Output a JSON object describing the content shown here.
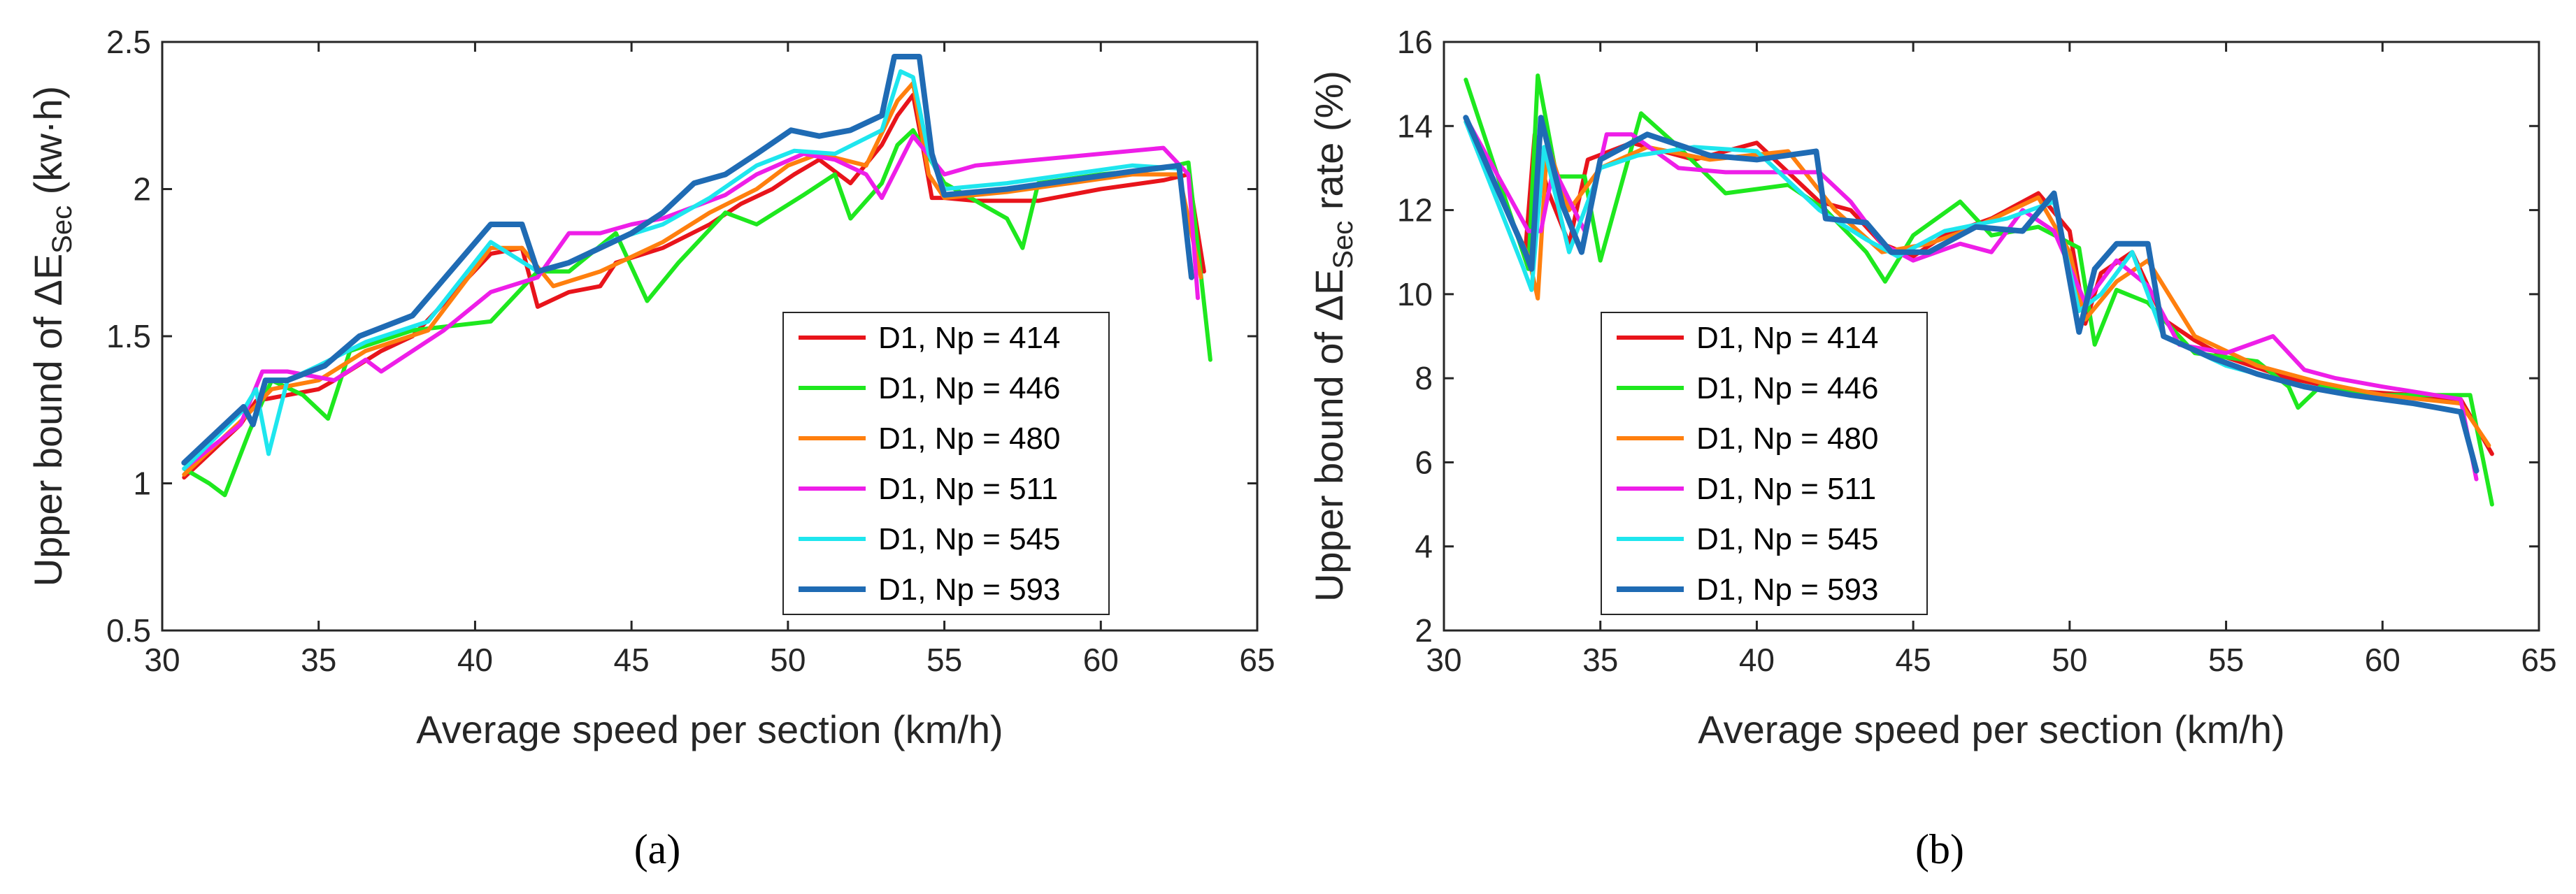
{
  "figure_labels": [
    "(a)",
    "(b)"
  ],
  "chart_data": [
    {
      "type": "line",
      "id": "a",
      "xlabel": "Average speed per section (km/h)",
      "ylabel": "Upper bound of ΔE",
      "ylabel_sub": "Sec",
      "ylabel_unit": " (kw·h)",
      "xlim": [
        30,
        65
      ],
      "ylim": [
        0.5,
        2.5
      ],
      "xticks": [
        30,
        35,
        40,
        45,
        50,
        55,
        60,
        65
      ],
      "yticks": [
        0.5,
        1,
        1.5,
        2,
        2.5
      ],
      "ytick_labels": [
        "0.5",
        "1",
        "1.5",
        "2",
        "2.5"
      ],
      "legend_position": "bottom-right",
      "series": [
        {
          "name": "D1, Np = 414",
          "color": "#e8141b",
          "x": [
            30.7,
            31.5,
            32.5,
            33.0,
            35.0,
            35.5,
            37.0,
            38.0,
            40.5,
            41.5,
            42.0,
            43.0,
            44.0,
            44.5,
            46.0,
            47.5,
            48.5,
            49.5,
            50.2,
            51.0,
            52.0,
            53.0,
            53.5,
            54.0,
            54.3,
            54.6,
            55.0,
            56.0,
            58.0,
            60.0,
            62.0,
            62.8,
            63.3
          ],
          "values": [
            1.02,
            1.1,
            1.2,
            1.28,
            1.32,
            1.35,
            1.45,
            1.5,
            1.78,
            1.8,
            1.6,
            1.65,
            1.67,
            1.75,
            1.8,
            1.88,
            1.95,
            2.0,
            2.05,
            2.1,
            2.02,
            2.15,
            2.25,
            2.32,
            2.15,
            1.97,
            1.97,
            1.96,
            1.96,
            2.0,
            2.03,
            2.05,
            1.72
          ]
        },
        {
          "name": "D1, Np = 446",
          "color": "#1ee81e",
          "x": [
            30.7,
            31.5,
            32.0,
            32.8,
            33.5,
            34.5,
            35.3,
            36.0,
            38.0,
            40.5,
            42.0,
            43.0,
            44.5,
            45.5,
            46.5,
            48.0,
            49.0,
            50.5,
            51.5,
            52.0,
            53.0,
            53.5,
            54.0,
            55.0,
            56.0,
            57.0,
            57.5,
            58.0,
            60.0,
            62.0,
            62.8,
            63.5
          ],
          "values": [
            1.05,
            1.0,
            0.96,
            1.18,
            1.35,
            1.3,
            1.22,
            1.45,
            1.52,
            1.55,
            1.72,
            1.72,
            1.85,
            1.62,
            1.75,
            1.92,
            1.88,
            1.98,
            2.05,
            1.9,
            2.02,
            2.15,
            2.2,
            2.02,
            1.96,
            1.9,
            1.8,
            2.02,
            2.05,
            2.07,
            2.09,
            1.42
          ]
        },
        {
          "name": "D1, Np = 480",
          "color": "#ff7f0e",
          "x": [
            30.7,
            32.6,
            33.5,
            35.0,
            36.5,
            38.5,
            40.5,
            41.5,
            42.5,
            44.0,
            46.0,
            47.5,
            49.0,
            50.0,
            51.0,
            52.5,
            53.5,
            54.0,
            54.5,
            55.0,
            57.0,
            59.0,
            61.0,
            62.5,
            63.2
          ],
          "values": [
            1.03,
            1.22,
            1.32,
            1.35,
            1.45,
            1.52,
            1.8,
            1.8,
            1.67,
            1.72,
            1.82,
            1.92,
            2.0,
            2.08,
            2.12,
            2.08,
            2.3,
            2.36,
            2.05,
            1.97,
            1.99,
            2.02,
            2.05,
            2.05,
            1.7
          ]
        },
        {
          "name": "D1, Np = 511",
          "color": "#ee1ee8",
          "x": [
            30.7,
            32.5,
            33.2,
            34.0,
            35.5,
            36.5,
            37.0,
            39.0,
            40.5,
            42.0,
            43.0,
            44.0,
            45.0,
            46.0,
            48.0,
            49.0,
            50.5,
            51.5,
            52.5,
            53.0,
            54.0,
            55.0,
            56.0,
            58.0,
            60.0,
            62.0,
            62.8,
            63.1
          ],
          "values": [
            1.05,
            1.2,
            1.38,
            1.38,
            1.35,
            1.42,
            1.38,
            1.52,
            1.65,
            1.7,
            1.85,
            1.85,
            1.88,
            1.9,
            1.98,
            2.05,
            2.12,
            2.1,
            2.05,
            1.97,
            2.18,
            2.05,
            2.08,
            2.1,
            2.12,
            2.14,
            2.05,
            1.63
          ]
        },
        {
          "name": "D1, Np = 545",
          "color": "#1ee6ee",
          "x": [
            30.7,
            32.6,
            33.0,
            33.4,
            34.0,
            35.0,
            36.5,
            38.5,
            40.5,
            42.0,
            43.0,
            44.5,
            46.0,
            47.5,
            49.0,
            50.2,
            51.5,
            53.0,
            53.6,
            54.0,
            54.5,
            55.0,
            57.0,
            59.0,
            61.0,
            62.5,
            62.9
          ],
          "values": [
            1.05,
            1.25,
            1.32,
            1.1,
            1.35,
            1.4,
            1.48,
            1.55,
            1.82,
            1.72,
            1.75,
            1.83,
            1.88,
            1.97,
            2.08,
            2.13,
            2.12,
            2.2,
            2.4,
            2.38,
            2.12,
            2.0,
            2.02,
            2.05,
            2.08,
            2.07,
            1.72
          ]
        },
        {
          "name": "D1, Np = 593",
          "color": "#1f6bb4",
          "x": [
            30.7,
            32.6,
            32.9,
            33.3,
            34.0,
            35.2,
            36.3,
            38.0,
            40.5,
            41.5,
            42.0,
            43.0,
            44.0,
            45.0,
            46.0,
            47.0,
            48.0,
            49.0,
            50.1,
            51.0,
            52.0,
            53.0,
            53.4,
            54.2,
            54.6,
            55.0,
            57.0,
            59.0,
            61.0,
            62.5,
            62.9
          ],
          "values": [
            1.07,
            1.26,
            1.2,
            1.35,
            1.35,
            1.4,
            1.5,
            1.57,
            1.88,
            1.88,
            1.72,
            1.75,
            1.8,
            1.85,
            1.92,
            2.02,
            2.05,
            2.12,
            2.2,
            2.18,
            2.2,
            2.25,
            2.45,
            2.45,
            2.12,
            1.98,
            2.0,
            2.03,
            2.06,
            2.08,
            1.7
          ]
        }
      ]
    },
    {
      "type": "line",
      "id": "b",
      "xlabel": "Average speed per section (km/h)",
      "ylabel": "Upper bound of ΔE",
      "ylabel_sub": "Sec",
      "ylabel_unit": " rate (%)",
      "xlim": [
        30,
        65
      ],
      "ylim": [
        2,
        16
      ],
      "xticks": [
        30,
        35,
        40,
        45,
        50,
        55,
        60,
        65
      ],
      "yticks": [
        2,
        4,
        6,
        8,
        10,
        12,
        14,
        16
      ],
      "ytick_labels": [
        "2",
        "4",
        "6",
        "8",
        "10",
        "12",
        "14",
        "16"
      ],
      "legend_position": "bottom-left",
      "series": [
        {
          "name": "D1, Np = 414",
          "color": "#e8141b",
          "x": [
            30.7,
            32.6,
            32.9,
            33.3,
            34.0,
            34.6,
            36.0,
            38.0,
            40.0,
            42.0,
            43.0,
            44.0,
            45.0,
            46.0,
            47.5,
            49.0,
            50.0,
            50.5,
            51.0,
            52.0,
            53.0,
            54.0,
            55.0,
            57.0,
            59.0,
            61.0,
            62.5,
            63.5
          ],
          "values": [
            14.2,
            11.0,
            13.8,
            12.5,
            11.2,
            13.2,
            13.6,
            13.2,
            13.6,
            12.2,
            12.0,
            11.2,
            10.9,
            11.4,
            11.8,
            12.4,
            11.5,
            9.3,
            10.5,
            11.0,
            9.4,
            8.9,
            8.5,
            8.0,
            7.7,
            7.6,
            7.5,
            6.2
          ]
        },
        {
          "name": "D1, Np = 446",
          "color": "#1ee81e",
          "x": [
            30.7,
            32.7,
            33.0,
            33.6,
            34.5,
            35.0,
            36.3,
            37.5,
            39.0,
            41.0,
            42.2,
            43.5,
            44.1,
            45.0,
            46.5,
            47.5,
            49.0,
            50.3,
            50.8,
            51.5,
            52.5,
            54.0,
            56.0,
            57.0,
            57.3,
            58.0,
            60.0,
            62.8,
            63.5
          ],
          "values": [
            15.1,
            10.6,
            15.2,
            12.8,
            12.8,
            10.8,
            14.3,
            13.5,
            12.4,
            12.6,
            12.0,
            11.0,
            10.3,
            11.4,
            12.2,
            11.4,
            11.6,
            11.1,
            8.8,
            10.1,
            9.8,
            8.6,
            8.4,
            7.8,
            7.3,
            7.8,
            7.6,
            7.6,
            5.0
          ]
        },
        {
          "name": "D1, Np = 480",
          "color": "#ff7f0e",
          "x": [
            30.7,
            32.7,
            33.0,
            33.3,
            34.0,
            35.0,
            36.5,
            38.5,
            41.0,
            42.5,
            44.0,
            45.5,
            47.0,
            49.0,
            50.0,
            50.5,
            51.5,
            52.5,
            54.0,
            56.0,
            58.0,
            60.0,
            62.5,
            63.4
          ],
          "values": [
            14.1,
            10.9,
            9.9,
            13.6,
            12.0,
            13.0,
            13.5,
            13.2,
            13.4,
            12.0,
            11.0,
            11.2,
            11.6,
            12.3,
            11.0,
            9.4,
            10.3,
            10.8,
            9.0,
            8.3,
            7.9,
            7.6,
            7.4,
            6.4
          ]
        },
        {
          "name": "D1, Np = 511",
          "color": "#ee1ee8",
          "x": [
            30.7,
            32.7,
            33.1,
            33.5,
            34.5,
            35.2,
            36.0,
            37.5,
            39.0,
            42.0,
            43.0,
            44.0,
            45.0,
            46.5,
            47.5,
            48.5,
            49.5,
            50.5,
            51.5,
            52.5,
            53.5,
            55.0,
            56.5,
            57.5,
            58.5,
            60.0,
            62.5,
            63.0
          ],
          "values": [
            14.2,
            11.5,
            11.5,
            13.0,
            11.5,
            13.8,
            13.8,
            13.0,
            12.9,
            12.9,
            12.2,
            11.2,
            10.8,
            11.2,
            11.0,
            12.0,
            11.5,
            9.8,
            10.8,
            10.2,
            8.8,
            8.6,
            9.0,
            8.2,
            8.0,
            7.8,
            7.5,
            5.6
          ]
        },
        {
          "name": "D1, Np = 545",
          "color": "#1ee6ee",
          "x": [
            30.7,
            32.5,
            32.8,
            33.2,
            34.0,
            35.0,
            36.2,
            38.0,
            40.0,
            42.0,
            43.5,
            44.5,
            46.0,
            48.0,
            49.5,
            50.3,
            51.0,
            52.0,
            53.0,
            55.0,
            57.0,
            59.0,
            61.0,
            62.5,
            63.0
          ],
          "values": [
            14.1,
            10.7,
            10.1,
            13.5,
            11.0,
            13.0,
            13.3,
            13.5,
            13.4,
            12.0,
            11.3,
            10.9,
            11.5,
            11.8,
            12.2,
            9.6,
            10.0,
            11.0,
            9.0,
            8.3,
            7.9,
            7.6,
            7.4,
            7.2,
            5.8
          ]
        },
        {
          "name": "D1, Np = 593",
          "color": "#1f6bb4",
          "x": [
            30.7,
            32.6,
            32.8,
            33.1,
            33.8,
            34.4,
            35.0,
            36.5,
            38.5,
            40.0,
            41.9,
            42.2,
            43.5,
            44.3,
            45.5,
            47.0,
            48.5,
            49.5,
            50.3,
            50.8,
            51.5,
            52.5,
            53.0,
            54.5,
            56.0,
            57.5,
            59.0,
            61.0,
            62.5,
            63.0
          ],
          "values": [
            14.2,
            11.0,
            10.6,
            14.2,
            12.1,
            11.0,
            13.2,
            13.8,
            13.3,
            13.2,
            13.4,
            11.8,
            11.7,
            11.0,
            11.0,
            11.6,
            11.5,
            12.4,
            9.1,
            10.6,
            11.2,
            11.2,
            9.0,
            8.5,
            8.1,
            7.8,
            7.6,
            7.4,
            7.2,
            5.8
          ]
        }
      ]
    }
  ]
}
